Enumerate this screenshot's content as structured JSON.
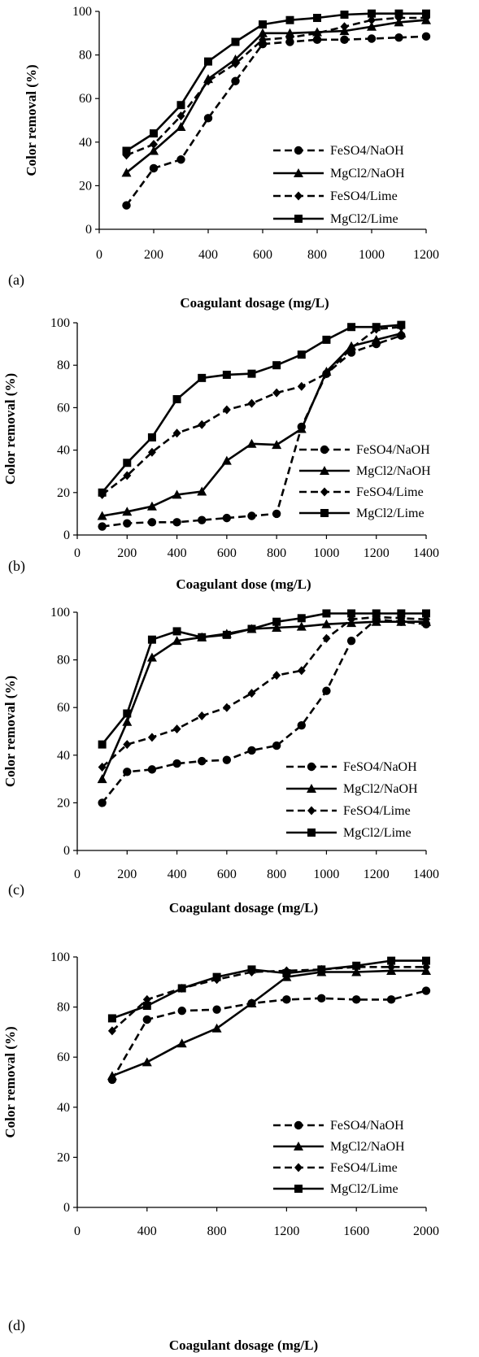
{
  "series_styles": [
    {
      "marker": "circle",
      "dash": "dashed"
    },
    {
      "marker": "triangle",
      "dash": "solid"
    },
    {
      "marker": "diamond",
      "dash": "dashed"
    },
    {
      "marker": "square",
      "dash": "solid"
    }
  ],
  "chart_data": [
    {
      "type": "line",
      "panel_label": "(a)",
      "xlabel": "Coagulant dosage (mg/L)",
      "ylabel": "Color removal (%)",
      "xlim": [
        0,
        1200
      ],
      "ylim": [
        0,
        100
      ],
      "xticks": [
        0,
        200,
        400,
        600,
        800,
        1000,
        1200
      ],
      "yticks": [
        0,
        20,
        40,
        60,
        80,
        100
      ],
      "legend_position": "bottom-right",
      "series": [
        {
          "name": "FeSO4/NaOH",
          "x": [
            100,
            200,
            300,
            400,
            500,
            600,
            700,
            800,
            900,
            1000,
            1100,
            1200
          ],
          "y": [
            11,
            28,
            32,
            51,
            68,
            85,
            86,
            87,
            87,
            87.5,
            88,
            88.5
          ]
        },
        {
          "name": "MgCl2/NaOH",
          "x": [
            100,
            200,
            300,
            400,
            500,
            600,
            700,
            800,
            900,
            1000,
            1100,
            1200
          ],
          "y": [
            26,
            36,
            47,
            69,
            78,
            90,
            90,
            90.5,
            91,
            93,
            95,
            96
          ]
        },
        {
          "name": "FeSO4/Lime",
          "x": [
            100,
            200,
            300,
            400,
            500,
            600,
            700,
            800,
            900,
            1000,
            1100,
            1200
          ],
          "y": [
            34,
            39,
            52,
            68,
            76,
            87,
            88,
            90,
            93,
            96,
            97,
            97
          ]
        },
        {
          "name": "MgCl2/Lime",
          "x": [
            100,
            200,
            300,
            400,
            500,
            600,
            700,
            800,
            900,
            1000,
            1100,
            1200
          ],
          "y": [
            36,
            44,
            57,
            77,
            86,
            94,
            96,
            97,
            98.5,
            99,
            99,
            99
          ]
        }
      ]
    },
    {
      "type": "line",
      "panel_label": "(b)",
      "xlabel": "Coagulant dose (mg/L)",
      "ylabel": "Color removal (%)",
      "xlim": [
        0,
        1400
      ],
      "ylim": [
        0,
        100
      ],
      "xticks": [
        0,
        200,
        400,
        600,
        800,
        1000,
        1200,
        1400
      ],
      "yticks": [
        0,
        20,
        40,
        60,
        80,
        100
      ],
      "legend_position": "bottom-right",
      "series": [
        {
          "name": "FeSO4/NaOH",
          "x": [
            100,
            200,
            300,
            400,
            500,
            600,
            700,
            800,
            900,
            1000,
            1100,
            1200,
            1300
          ],
          "y": [
            4,
            5.5,
            6,
            6,
            7,
            8,
            9,
            10,
            51,
            76,
            86,
            90,
            94
          ]
        },
        {
          "name": "MgCl2/NaOH",
          "x": [
            100,
            200,
            300,
            400,
            500,
            600,
            700,
            800,
            900,
            1000,
            1100,
            1200,
            1300
          ],
          "y": [
            9,
            11,
            13.5,
            19,
            20.5,
            35,
            43,
            42.5,
            50,
            77,
            89,
            92,
            95
          ]
        },
        {
          "name": "FeSO4/Lime",
          "x": [
            100,
            200,
            300,
            400,
            500,
            600,
            700,
            800,
            900,
            1000,
            1100,
            1200,
            1300
          ],
          "y": [
            19,
            28,
            39,
            48,
            52,
            59,
            62,
            67,
            70,
            76,
            88,
            97,
            98
          ]
        },
        {
          "name": "MgCl2/Lime",
          "x": [
            100,
            200,
            300,
            400,
            500,
            600,
            700,
            800,
            900,
            1000,
            1100,
            1200,
            1300
          ],
          "y": [
            20,
            34,
            46,
            64,
            74,
            75.5,
            76,
            80,
            85,
            92,
            98,
            98,
            99
          ]
        }
      ]
    },
    {
      "type": "line",
      "panel_label": "(c)",
      "xlabel": "Coagulant dosage (mg/L)",
      "ylabel": "Color removal (%)",
      "xlim": [
        0,
        1400
      ],
      "ylim": [
        0,
        100
      ],
      "xticks": [
        0,
        200,
        400,
        600,
        800,
        1000,
        1200,
        1400
      ],
      "yticks": [
        0,
        20,
        40,
        60,
        80,
        100
      ],
      "legend_position": "bottom-right",
      "series": [
        {
          "name": "FeSO4/NaOH",
          "x": [
            100,
            200,
            300,
            400,
            500,
            600,
            700,
            800,
            900,
            1000,
            1100,
            1200,
            1300,
            1400
          ],
          "y": [
            20,
            33,
            34,
            36.5,
            37.5,
            38,
            42,
            44,
            52.5,
            67,
            88,
            97,
            96,
            95
          ]
        },
        {
          "name": "MgCl2/NaOH",
          "x": [
            100,
            200,
            300,
            400,
            500,
            600,
            700,
            800,
            900,
            1000,
            1100,
            1200,
            1300,
            1400
          ],
          "y": [
            30,
            54,
            81,
            88,
            89.5,
            91,
            93,
            93.5,
            94,
            95,
            95.5,
            96,
            96,
            96
          ]
        },
        {
          "name": "FeSO4/Lime",
          "x": [
            100,
            200,
            300,
            400,
            500,
            600,
            700,
            800,
            900,
            1000,
            1100,
            1200,
            1300,
            1400
          ],
          "y": [
            35,
            44.5,
            47.5,
            51,
            56.5,
            60,
            66,
            73.5,
            75.5,
            89,
            97,
            98,
            97.5,
            97
          ]
        },
        {
          "name": "MgCl2/Lime",
          "x": [
            100,
            200,
            300,
            400,
            500,
            600,
            700,
            800,
            900,
            1000,
            1100,
            1200,
            1300,
            1400
          ],
          "y": [
            44.5,
            57.5,
            88.5,
            92,
            89.5,
            90.5,
            93,
            96,
            97.5,
            99.5,
            99.5,
            99.5,
            99.5,
            99.5
          ]
        }
      ]
    },
    {
      "type": "line",
      "panel_label": "(d)",
      "xlabel": "Coagulant dosage (mg/L)",
      "ylabel": "Color removal (%)",
      "xlim": [
        0,
        2000
      ],
      "ylim": [
        0,
        100
      ],
      "xticks": [
        0,
        400,
        800,
        1200,
        1600,
        2000
      ],
      "yticks": [
        0,
        20,
        40,
        60,
        80,
        100
      ],
      "legend_position": "bottom-right",
      "series": [
        {
          "name": "FeSO4/NaOH",
          "x": [
            200,
            400,
            600,
            800,
            1000,
            1200,
            1400,
            1600,
            1800,
            2000
          ],
          "y": [
            51,
            75,
            78.5,
            79,
            81.5,
            83,
            83.5,
            83,
            83,
            86.5
          ]
        },
        {
          "name": "MgCl2/NaOH",
          "x": [
            200,
            400,
            600,
            800,
            1000,
            1200,
            1400,
            1600,
            1800,
            2000
          ],
          "y": [
            52.5,
            58,
            65.5,
            71.5,
            81.5,
            92,
            94,
            94,
            94.5,
            94.5
          ]
        },
        {
          "name": "FeSO4/Lime",
          "x": [
            200,
            400,
            600,
            800,
            1000,
            1200,
            1400,
            1600,
            1800,
            2000
          ],
          "y": [
            70.5,
            83,
            87.5,
            91,
            94,
            94.5,
            95,
            96,
            96,
            96
          ]
        },
        {
          "name": "MgCl2/Lime",
          "x": [
            200,
            400,
            600,
            800,
            1000,
            1200,
            1400,
            1600,
            1800,
            2000
          ],
          "y": [
            75.5,
            80.5,
            87.5,
            92,
            95,
            93.5,
            95,
            96.5,
            98.5,
            98.5
          ]
        }
      ]
    }
  ]
}
